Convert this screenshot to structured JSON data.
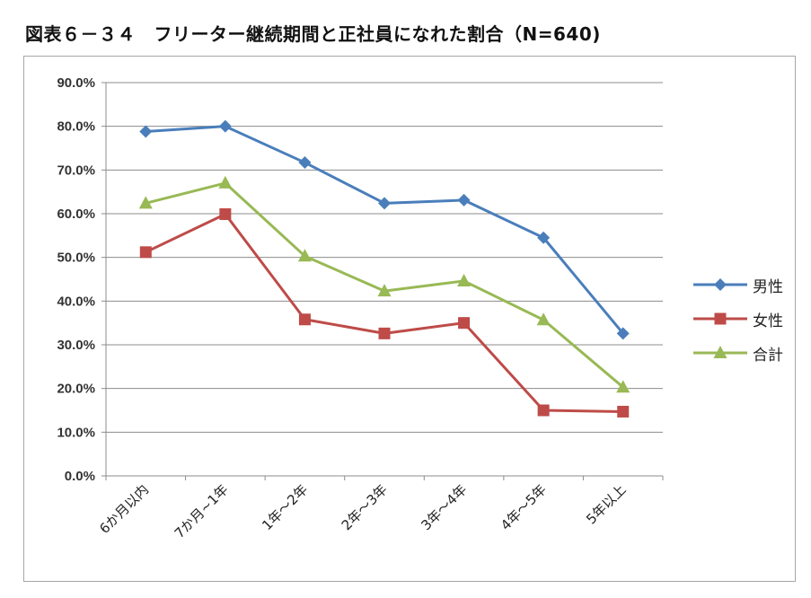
{
  "title": "図表６－３４　フリーター継続期間と正社員になれた割合（N=640)",
  "chart_data": {
    "type": "line",
    "categories": [
      "6か月以内",
      "7か月~1年",
      "1年～2年",
      "2年～3年",
      "3年～4年",
      "4年～5年",
      "5年以上"
    ],
    "y_ticks": [
      "0.0%",
      "10.0%",
      "20.0%",
      "30.0%",
      "40.0%",
      "50.0%",
      "60.0%",
      "70.0%",
      "80.0%",
      "90.0%"
    ],
    "ylim": [
      0,
      90
    ],
    "grid": true,
    "legend_position": "right",
    "series": [
      {
        "name": "男性",
        "color": "#4a7ebb",
        "marker": "diamond",
        "values": [
          78.8,
          80.0,
          71.7,
          62.4,
          63.1,
          54.5,
          32.6
        ]
      },
      {
        "name": "女性",
        "color": "#be4b48",
        "marker": "square",
        "values": [
          51.2,
          59.9,
          35.8,
          32.6,
          35.0,
          15.0,
          14.7
        ]
      },
      {
        "name": "合計",
        "color": "#98b954",
        "marker": "triangle",
        "values": [
          62.4,
          67.0,
          50.3,
          42.3,
          44.6,
          35.7,
          20.3
        ]
      }
    ]
  }
}
